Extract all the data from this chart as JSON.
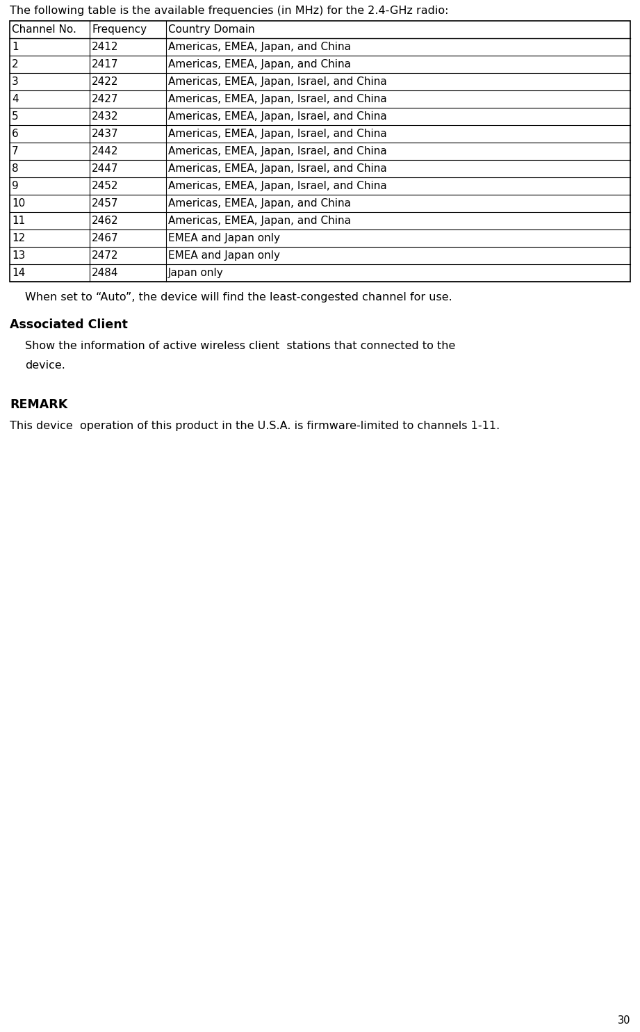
{
  "intro_text": "The following table is the available frequencies (in MHz) for the 2.4-GHz radio:",
  "table_headers": [
    "Channel No.",
    "Frequency",
    "Country Domain"
  ],
  "table_rows": [
    [
      "1",
      "2412",
      "Americas, EMEA, Japan, and China"
    ],
    [
      "2",
      "2417",
      "Americas, EMEA, Japan, and China"
    ],
    [
      "3",
      "2422",
      "Americas, EMEA, Japan, Israel, and China"
    ],
    [
      "4",
      "2427",
      "Americas, EMEA, Japan, Israel, and China"
    ],
    [
      "5",
      "2432",
      "Americas, EMEA, Japan, Israel, and China"
    ],
    [
      "6",
      "2437",
      "Americas, EMEA, Japan, Israel, and China"
    ],
    [
      "7",
      "2442",
      "Americas, EMEA, Japan, Israel, and China"
    ],
    [
      "8",
      "2447",
      "Americas, EMEA, Japan, Israel, and China"
    ],
    [
      "9",
      "2452",
      "Americas, EMEA, Japan, Israel, and China"
    ],
    [
      "10",
      "2457",
      "Americas, EMEA, Japan, and China"
    ],
    [
      "11",
      "2462",
      "Americas, EMEA, Japan, and China"
    ],
    [
      "12",
      "2467",
      "EMEA and Japan only"
    ],
    [
      "13",
      "2472",
      "EMEA and Japan only"
    ],
    [
      "14",
      "2484",
      "Japan only"
    ]
  ],
  "auto_text": "When set to “Auto”, the device will find the least-congested channel for use.",
  "section_title": "Associated Client",
  "section_body_line1": "Show the information of active wireless client  stations that connected to the",
  "section_body_line2": "device.",
  "remark_title": "REMARK",
  "remark_body": "This device  operation of this product in the U.S.A. is firmware-limited to channels 1-11.",
  "page_number": "30",
  "bg_color": "#ffffff",
  "text_color": "#000000",
  "font_size_intro": 11.5,
  "font_size_table": 11.0,
  "font_size_body": 11.5,
  "font_size_section_title": 12.5,
  "font_size_remark_title": 12.5,
  "font_size_page": 10.5
}
